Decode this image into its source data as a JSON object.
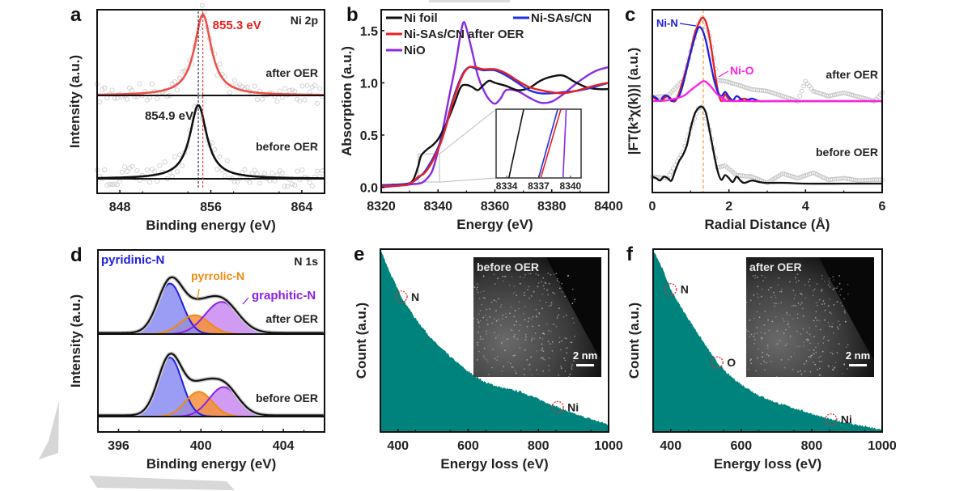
{
  "chart_data": [
    {
      "panel": "a",
      "type": "line",
      "title": "Ni 2p",
      "xlabel": "Binding energy (eV)",
      "ylabel": "Intensity (a.u.)",
      "xlim": [
        846,
        866
      ],
      "xticks": [
        848,
        856,
        864
      ],
      "xtick_labels": [
        "848",
        "856",
        "864"
      ],
      "series": [
        {
          "name": "after OER",
          "color": "#f0504a",
          "peak_x": 855.3,
          "peak_label": "855.3 eV",
          "fwhm": 1.8,
          "data_style": "raw-circles-gray"
        },
        {
          "name": "before OER",
          "color": "#111111",
          "peak_x": 854.9,
          "peak_label": "854.9 eV",
          "fwhm": 1.8,
          "data_style": "raw-circles-gray"
        }
      ],
      "annotations": [
        "855.3 eV",
        "854.9 eV",
        "after OER",
        "before OER",
        "Ni 2p"
      ],
      "reference_lines": [
        {
          "x": 854.9,
          "color": "#111111"
        },
        {
          "x": 855.3,
          "color": "#e02020"
        }
      ]
    },
    {
      "panel": "b",
      "type": "line",
      "xlabel": "Energy (eV)",
      "ylabel": "Absorption (a.u.)",
      "xlim": [
        8320,
        8400
      ],
      "ylim": [
        -0.05,
        1.7
      ],
      "xticks": [
        8320,
        8340,
        8360,
        8380,
        8400
      ],
      "xtick_labels": [
        "8320",
        "8340",
        "8360",
        "8380",
        "8400"
      ],
      "yticks": [
        0.0,
        0.5,
        1.0,
        1.5
      ],
      "ytick_labels": [
        "0.0",
        "0.5",
        "1.0",
        "1.5"
      ],
      "legend": [
        "Ni foil",
        "Ni-SAs/CN",
        "Ni-SAs/CN after OER",
        "NiO"
      ],
      "legend_position": "top-left",
      "series": [
        {
          "name": "Ni foil",
          "color": "#111111",
          "x": [
            8320,
            8328,
            8331,
            8333,
            8334,
            8336,
            8338,
            8340,
            8342,
            8344,
            8346,
            8348,
            8350,
            8352,
            8354,
            8356,
            8358,
            8360,
            8364,
            8368,
            8372,
            8376,
            8380,
            8384,
            8388,
            8392,
            8396,
            8400
          ],
          "y": [
            0.02,
            0.03,
            0.06,
            0.2,
            0.3,
            0.36,
            0.4,
            0.46,
            0.56,
            0.68,
            0.82,
            0.96,
            0.98,
            0.96,
            0.93,
            0.98,
            1.02,
            1.0,
            0.97,
            0.93,
            0.95,
            1.02,
            1.06,
            1.07,
            1.01,
            0.96,
            0.94,
            0.94
          ]
        },
        {
          "name": "Ni-SAs/CN",
          "color": "#2030e8",
          "x": [
            8320,
            8328,
            8331,
            8333,
            8335,
            8337,
            8339,
            8341,
            8343,
            8345,
            8347,
            8349,
            8351,
            8353,
            8356,
            8360,
            8364,
            8368,
            8372,
            8376,
            8380,
            8384,
            8388,
            8392,
            8396,
            8400
          ],
          "y": [
            0.02,
            0.03,
            0.05,
            0.09,
            0.14,
            0.22,
            0.32,
            0.45,
            0.62,
            0.82,
            0.98,
            1.1,
            1.15,
            1.14,
            1.12,
            1.12,
            1.07,
            1.0,
            0.93,
            0.9,
            0.9,
            0.91,
            0.92,
            0.94,
            0.97,
            1.0
          ]
        },
        {
          "name": "Ni-SAs/CN after OER",
          "color": "#e82020",
          "x": [
            8320,
            8328,
            8331,
            8333,
            8335,
            8337,
            8339,
            8341,
            8343,
            8345,
            8347,
            8349,
            8351,
            8353,
            8356,
            8360,
            8364,
            8368,
            8372,
            8376,
            8380,
            8384,
            8388,
            8392,
            8396,
            8400
          ],
          "y": [
            0.01,
            0.02,
            0.05,
            0.1,
            0.13,
            0.2,
            0.3,
            0.43,
            0.6,
            0.8,
            0.96,
            1.09,
            1.15,
            1.15,
            1.13,
            1.13,
            1.09,
            1.02,
            0.96,
            0.93,
            0.91,
            0.9,
            0.92,
            0.95,
            0.98,
            1.0
          ]
        },
        {
          "name": "NiO",
          "color": "#8a2be2",
          "x": [
            8320,
            8328,
            8331,
            8334,
            8336,
            8338,
            8340,
            8342,
            8344,
            8346,
            8348,
            8349,
            8350,
            8352,
            8354,
            8356,
            8358,
            8360,
            8362,
            8364,
            8368,
            8372,
            8376,
            8380,
            8384,
            8388,
            8392,
            8396,
            8400
          ],
          "y": [
            0.0,
            0.02,
            0.03,
            0.04,
            0.08,
            0.16,
            0.35,
            0.6,
            0.88,
            1.15,
            1.48,
            1.58,
            1.52,
            1.3,
            1.07,
            0.93,
            0.84,
            0.8,
            0.85,
            0.93,
            0.92,
            0.86,
            0.81,
            0.82,
            0.89,
            0.98,
            1.06,
            1.12,
            1.15
          ]
        }
      ],
      "inset": {
        "xlim": [
          8333,
          8341
        ],
        "xticks": [
          8334,
          8337,
          8340
        ],
        "xtick_labels": [
          "8334",
          "8337",
          "8340"
        ],
        "crossings": [
          {
            "name": "Ni foil",
            "color": "#111111",
            "x_bottom": 8334.2,
            "x_top": 8335.6
          },
          {
            "name": "Ni-SAs/CN",
            "color": "#2030e8",
            "x_bottom": 8337.0,
            "x_top": 8338.8
          },
          {
            "name": "Ni-SAs/CN after OER",
            "color": "#e82020",
            "x_bottom": 8337.2,
            "x_top": 8339.1
          },
          {
            "name": "NiO",
            "color": "#8a2be2",
            "x_bottom": 8339.3,
            "x_top": 8339.6
          }
        ]
      }
    },
    {
      "panel": "c",
      "type": "line",
      "xlabel": "Radial Distance (Å)",
      "ylabel": "|FT(k³χ(k))| (a.u.)",
      "xlim": [
        0,
        6
      ],
      "xticks": [
        0,
        2,
        4,
        6
      ],
      "xtick_labels": [
        "0",
        "2",
        "4",
        "6"
      ],
      "reference_line_x": 1.33,
      "annotations": [
        "Ni-N",
        "Ni-O",
        "after OER",
        "before OER"
      ],
      "series": [
        {
          "name": "after OER total fit",
          "color": "#e82020",
          "x": [
            0,
            0.2,
            0.4,
            0.6,
            0.8,
            1.0,
            1.1,
            1.2,
            1.3,
            1.4,
            1.5,
            1.6,
            1.7,
            1.8,
            1.9,
            2.0,
            2.2,
            2.4,
            2.6,
            3.0,
            6.0
          ],
          "y": [
            0.05,
            0.0,
            0.06,
            0.0,
            0.25,
            0.6,
            0.8,
            0.92,
            1.0,
            0.95,
            0.75,
            0.45,
            0.15,
            0.0,
            0.08,
            0.02,
            0.0,
            0.03,
            0.0,
            0.0,
            0.0
          ]
        },
        {
          "name": "Ni-N",
          "color": "#2020e0",
          "x": [
            0,
            0.1,
            0.2,
            0.3,
            0.4,
            0.5,
            0.6,
            0.7,
            0.8,
            1.0,
            1.1,
            1.2,
            1.3,
            1.4,
            1.5,
            1.6,
            1.7,
            1.8,
            1.9,
            2.0,
            2.1,
            2.2,
            2.3,
            2.4,
            2.6,
            2.8,
            3.2,
            6.0
          ],
          "y": [
            0.06,
            0.04,
            0.0,
            0.06,
            0.06,
            0.0,
            0.02,
            0.06,
            0.2,
            0.58,
            0.75,
            0.88,
            0.86,
            0.72,
            0.5,
            0.28,
            0.12,
            0.06,
            0.11,
            0.05,
            0.01,
            0.06,
            0.03,
            0.0,
            0.03,
            0.0,
            0.0,
            0.0
          ]
        },
        {
          "name": "Ni-O",
          "color": "#ff20e0",
          "x": [
            0,
            0.4,
            0.8,
            1.0,
            1.2,
            1.35,
            1.5,
            1.7,
            1.9,
            2.2,
            6.0
          ],
          "y": [
            0.0,
            0.01,
            0.06,
            0.13,
            0.2,
            0.24,
            0.19,
            0.08,
            0.02,
            0.0,
            0.0
          ]
        },
        {
          "name": "after OER raw",
          "color": "#bbbbbb",
          "style": "circles",
          "x": [
            0,
            0.4,
            0.8,
            1.0,
            1.2,
            1.3,
            1.5,
            1.7,
            1.9,
            2.2,
            2.6,
            3.0,
            3.4,
            3.8,
            4.0,
            4.2,
            4.6,
            5.0,
            5.4,
            5.8,
            6.0
          ],
          "y": [
            0.05,
            0.06,
            0.25,
            0.6,
            0.92,
            1.0,
            0.78,
            0.25,
            0.24,
            0.2,
            0.14,
            0.12,
            0.06,
            0.0,
            0.24,
            0.12,
            0.06,
            0.1,
            0.05,
            0.0,
            0.1
          ]
        },
        {
          "name": "before OER fit",
          "color": "#111111",
          "x": [
            0,
            0.1,
            0.2,
            0.3,
            0.4,
            0.5,
            0.6,
            0.7,
            0.8,
            0.9,
            1.0,
            1.1,
            1.2,
            1.3,
            1.4,
            1.5,
            1.6,
            1.7,
            1.8,
            1.9,
            2.0,
            2.1,
            2.2,
            2.3,
            2.4,
            2.6,
            2.8,
            3.0,
            3.5,
            4.0,
            5.0,
            6.0
          ],
          "y": [
            0.1,
            0.08,
            0.05,
            0.1,
            0.08,
            0.05,
            0.18,
            0.3,
            0.38,
            0.5,
            0.72,
            0.9,
            0.98,
            1.0,
            0.92,
            0.68,
            0.42,
            0.18,
            0.06,
            0.12,
            0.08,
            0.03,
            0.1,
            0.05,
            0.02,
            0.05,
            0.03,
            0.02,
            0.02,
            0.01,
            0.01,
            0.01
          ]
        },
        {
          "name": "before OER raw",
          "color": "#bbbbbb",
          "style": "circles",
          "x": [
            0,
            0.4,
            0.8,
            1.0,
            1.2,
            1.3,
            1.5,
            1.7,
            1.9,
            2.2,
            2.6,
            3.0,
            3.4,
            3.8,
            4.2,
            4.6,
            5.0,
            5.4,
            5.8,
            6.0
          ],
          "y": [
            0.1,
            0.08,
            0.42,
            0.72,
            0.98,
            1.0,
            0.7,
            0.22,
            0.24,
            0.12,
            0.1,
            0.02,
            0.14,
            0.08,
            0.15,
            0.06,
            0.08,
            0.05,
            0.06,
            0.06
          ]
        }
      ]
    },
    {
      "panel": "d",
      "type": "area",
      "title": "N 1s",
      "xlabel": "Binding energy (eV)",
      "ylabel": "Intensity (a.u.)",
      "xlim": [
        395,
        406
      ],
      "xticks": [
        396,
        400,
        404
      ],
      "xtick_labels": [
        "396",
        "400",
        "404"
      ],
      "annotations": [
        "pyridinic-N",
        "pyrrolic-N",
        "graphitic-N",
        "after OER",
        "before OER",
        "N 1s"
      ],
      "components": [
        {
          "name": "pyridinic-N",
          "color": "#2020e0",
          "fill": "#8a8cf2",
          "after_OER": {
            "center": 398.5,
            "height": 0.88,
            "sigma": 0.6
          },
          "before_OER": {
            "center": 398.5,
            "height": 1.0,
            "sigma": 0.58
          }
        },
        {
          "name": "pyrrolic-N",
          "color": "#f08a10",
          "fill": "#f5903a",
          "after_OER": {
            "center": 399.7,
            "height": 0.33,
            "sigma": 0.7
          },
          "before_OER": {
            "center": 399.9,
            "height": 0.42,
            "sigma": 0.65
          }
        },
        {
          "name": "graphitic-N",
          "color": "#8a20e8",
          "fill": "#c98af2",
          "after_OER": {
            "center": 401.0,
            "height": 0.56,
            "sigma": 0.8
          },
          "before_OER": {
            "center": 401.1,
            "height": 0.5,
            "sigma": 0.7
          }
        }
      ]
    },
    {
      "panel": "e",
      "type": "area",
      "xlabel": "Energy loss (eV)",
      "ylabel": "Count (a.u.)",
      "xlim": [
        350,
        1000
      ],
      "xticks": [
        400,
        600,
        800,
        1000
      ],
      "xtick_labels": [
        "400",
        "600",
        "800",
        "1000"
      ],
      "fill_color": "#00837d",
      "edge_markers": [
        {
          "label": "N",
          "x": 410
        },
        {
          "label": "Ni",
          "x": 855
        }
      ],
      "inset_label": "before OER",
      "scale_bar": "2 nm",
      "x": [
        350,
        380,
        410,
        450,
        500,
        550,
        600,
        650,
        700,
        750,
        800,
        850,
        900,
        950,
        1000
      ],
      "y": [
        1.0,
        0.86,
        0.74,
        0.62,
        0.5,
        0.41,
        0.33,
        0.27,
        0.24,
        0.22,
        0.18,
        0.14,
        0.1,
        0.07,
        0.04
      ]
    },
    {
      "panel": "f",
      "type": "area",
      "xlabel": "Energy loss (eV)",
      "ylabel": "Count (a.u.)",
      "xlim": [
        350,
        1000
      ],
      "xticks": [
        400,
        600,
        800,
        1000
      ],
      "xtick_labels": [
        "400",
        "600",
        "800",
        "1000"
      ],
      "fill_color": "#00837d",
      "edge_markers": [
        {
          "label": "N",
          "x": 400
        },
        {
          "label": "O",
          "x": 532
        },
        {
          "label": "Ni",
          "x": 855
        }
      ],
      "inset_label": "after OER",
      "scale_bar": "2 nm",
      "x": [
        350,
        375,
        400,
        430,
        470,
        500,
        532,
        560,
        600,
        650,
        700,
        750,
        800,
        850,
        900,
        950,
        1000
      ],
      "y": [
        1.0,
        0.9,
        0.78,
        0.68,
        0.56,
        0.47,
        0.38,
        0.32,
        0.26,
        0.2,
        0.16,
        0.13,
        0.1,
        0.07,
        0.05,
        0.03,
        0.01
      ]
    }
  ],
  "labels": {
    "panel_letters": [
      "a",
      "b",
      "c",
      "d",
      "e",
      "f"
    ]
  }
}
